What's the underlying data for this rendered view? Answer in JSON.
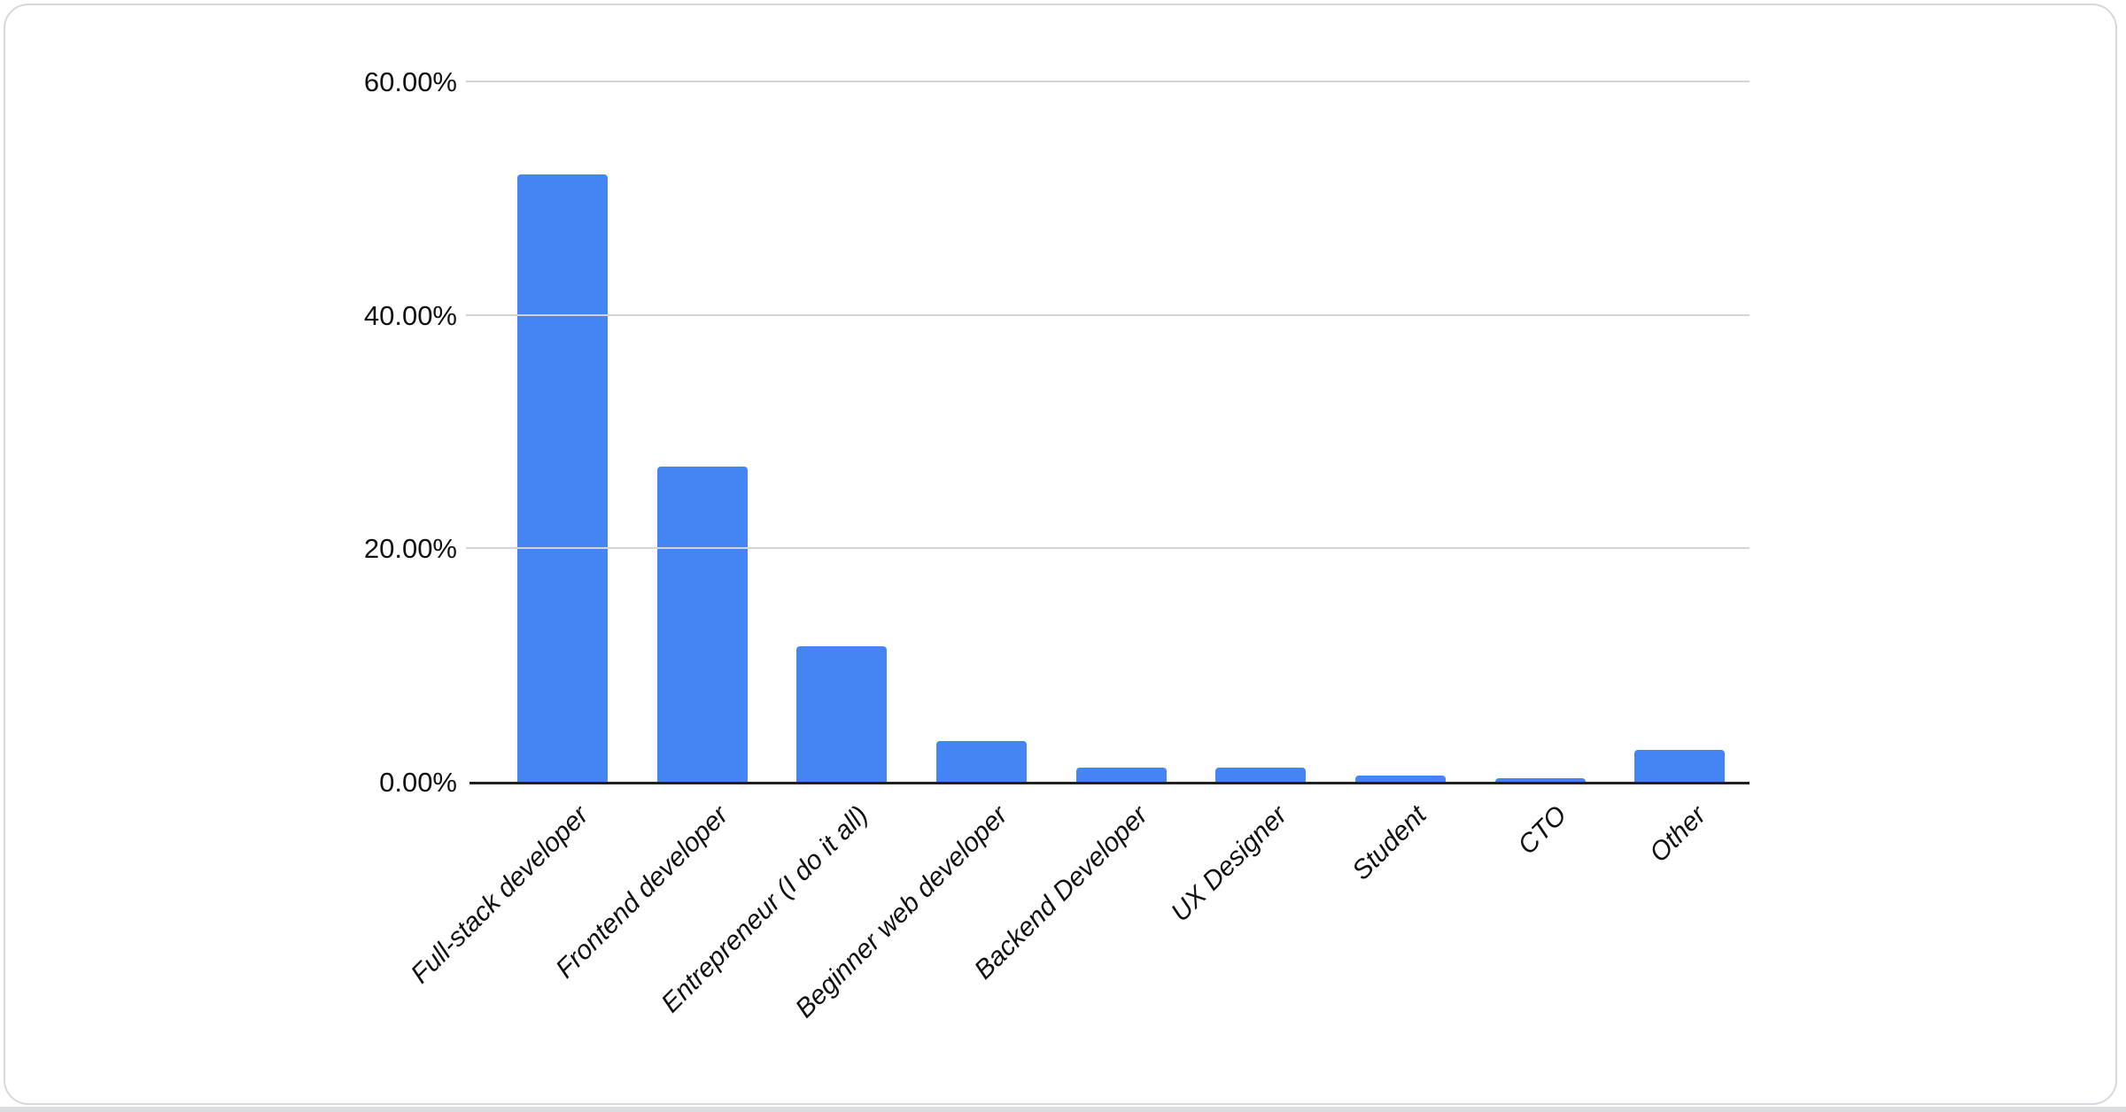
{
  "page": {
    "background_color": "#ffffff",
    "card_border_color": "#d5d8dc",
    "bottom_strip_color": "#d9dde0"
  },
  "chart_data": {
    "type": "bar",
    "title": "",
    "xlabel": "",
    "ylabel": "",
    "categories": [
      "Full-stack developer",
      "Frontend developer",
      "Entrepreneur (I do it all)",
      "Beginner web developer",
      "Backend Developer",
      "UX Designer",
      "Student",
      "CTO",
      "Other"
    ],
    "values": [
      52,
      27,
      11.6,
      3.5,
      1.2,
      1.2,
      0.5,
      0.3,
      2.7
    ],
    "bar_color": "#4585f3",
    "axis_line_color": "#212121",
    "gridline_color": "#d4d4d4",
    "ylim": [
      0,
      60
    ],
    "grid": true,
    "legend": "none",
    "x_label_rotation_deg": -45,
    "yticks": [
      {
        "value": 0,
        "label": "0.00%"
      },
      {
        "value": 20,
        "label": "20.00%"
      },
      {
        "value": 40,
        "label": "40.00%"
      },
      {
        "value": 60,
        "label": "60.00%"
      }
    ]
  }
}
